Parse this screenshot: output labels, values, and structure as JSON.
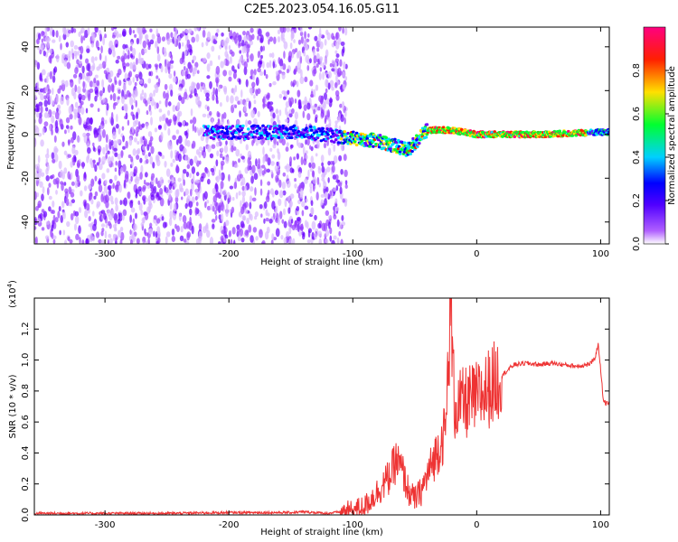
{
  "figure": {
    "title": "C2E5.2023.054.16.05.G11"
  },
  "chart_data": [
    {
      "type": "heatmap",
      "xlabel": "Height of straight line (km)",
      "ylabel": "Frequency (Hz)",
      "xlim": [
        -357,
        107
      ],
      "ylim": [
        -50,
        49
      ],
      "xticks": [
        -300,
        -200,
        -100,
        0,
        100
      ],
      "yticks": [
        -40,
        -20,
        0,
        20,
        40
      ],
      "colorbar": {
        "label": "Normalized spectral amplitude",
        "range": [
          0,
          1
        ],
        "ticks": [
          "0.0",
          "0.2",
          "0.4",
          "0.6",
          "0.8"
        ],
        "tick_values": [
          0.0,
          0.2,
          0.4,
          0.6,
          0.8
        ],
        "colormap": "rainbow",
        "stops": [
          "#ffffff",
          "#7000ff",
          "#0000ff",
          "#00e0ff",
          "#00ff30",
          "#ffe000",
          "#ff2000",
          "#ff0080"
        ]
      },
      "features": [
        {
          "name": "noise-region",
          "x_range": [
            -357,
            -105
          ],
          "y_range": [
            -50,
            49
          ]
        },
        {
          "name": "signal-band",
          "x": [
            -140,
            -80,
            -55,
            -40,
            -20,
            0,
            50,
            100,
            107
          ],
          "y": [
            1,
            -3,
            -7,
            2,
            2,
            0,
            0,
            1,
            1
          ]
        }
      ]
    },
    {
      "type": "line",
      "xlabel": "Height of straight line (km)",
      "ylabel": "SNR (10 * v/v)",
      "scale_label": "(x10",
      "scale_exp": "4",
      "scale_close": ")",
      "xlim": [
        -357,
        107
      ],
      "ylim": [
        0,
        1.4
      ],
      "xticks": [
        -300,
        -200,
        -100,
        0,
        100
      ],
      "yticks": [
        "0.0",
        "0.2",
        "0.4",
        "0.6",
        "0.8",
        "1.0",
        "1.2"
      ],
      "ytick_values": [
        0.0,
        0.2,
        0.4,
        0.6,
        0.8,
        1.0,
        1.2
      ],
      "color": "#ee3333",
      "series": [
        {
          "x": [
            -357,
            -300,
            -250,
            -200,
            -150,
            -140,
            -120,
            -100,
            -90,
            -80,
            -70,
            -65,
            -60,
            -55,
            -50,
            -45,
            -40,
            -35,
            -30,
            -25,
            -21,
            -18,
            -15,
            -10,
            0,
            10,
            20,
            30,
            40,
            50,
            60,
            70,
            80,
            90,
            95,
            98,
            100,
            102,
            104,
            107
          ],
          "y": [
            0.01,
            0.01,
            0.01,
            0.015,
            0.015,
            0.02,
            0.01,
            0.03,
            0.06,
            0.15,
            0.25,
            0.35,
            0.28,
            0.15,
            0.1,
            0.15,
            0.25,
            0.35,
            0.45,
            0.55,
            1.38,
            0.7,
            0.7,
            0.72,
            0.75,
            0.82,
            0.9,
            0.97,
            0.98,
            0.97,
            0.98,
            0.97,
            0.96,
            0.97,
            1.0,
            1.1,
            0.95,
            0.75,
            0.72,
            0.72
          ]
        }
      ]
    }
  ]
}
